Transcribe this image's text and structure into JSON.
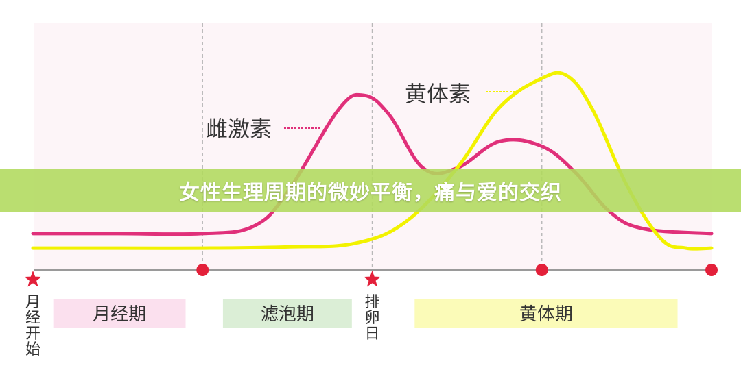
{
  "banner": {
    "title": "女性生理周期的微妙平衡，痛与爱的交织"
  },
  "colors": {
    "estrogen": "#e0307a",
    "progesterone": "#f2f200",
    "baseline_dot": "#e3203a",
    "phase_menstrual": "#fbe0ee",
    "phase_follicular": "#dbeed6",
    "phase_luteal": "#fbfbb8",
    "plot_bg": "#fdf5f8",
    "banner": "#b0da5c"
  },
  "chart_data": {
    "type": "line",
    "title": "",
    "xlabel": "",
    "ylabel": "",
    "xlim": [
      0,
      4
    ],
    "ylim": [
      0,
      1
    ],
    "series": [
      {
        "name": "雌激素",
        "x": [
          0,
          0.5,
          1.0,
          1.3,
          1.5,
          1.8,
          1.95,
          2.1,
          2.3,
          2.5,
          2.75,
          3.0,
          3.2,
          3.4,
          3.6,
          4.0
        ],
        "y": [
          0.15,
          0.15,
          0.15,
          0.18,
          0.32,
          0.66,
          0.72,
          0.64,
          0.42,
          0.42,
          0.53,
          0.51,
          0.4,
          0.24,
          0.17,
          0.15
        ]
      },
      {
        "name": "黄体素",
        "x": [
          0,
          0.5,
          1.0,
          1.5,
          1.9,
          2.2,
          2.5,
          2.75,
          3.0,
          3.15,
          3.3,
          3.5,
          3.7,
          3.85,
          4.0
        ],
        "y": [
          0.09,
          0.09,
          0.09,
          0.095,
          0.11,
          0.2,
          0.42,
          0.67,
          0.79,
          0.8,
          0.66,
          0.35,
          0.13,
          0.09,
          0.09
        ]
      }
    ],
    "series_labels": {
      "estrogen": "雌激素",
      "progesterone": "黄体素"
    },
    "markers": [
      {
        "x": 0,
        "shape": "star",
        "label": "月经开始"
      },
      {
        "x": 1,
        "shape": "circle",
        "label": ""
      },
      {
        "x": 2,
        "shape": "star",
        "label": "排卵日"
      },
      {
        "x": 3,
        "shape": "circle",
        "label": ""
      },
      {
        "x": 4,
        "shape": "circle",
        "label": ""
      }
    ],
    "phases": [
      {
        "label": "月经期",
        "start": 0.12,
        "end": 0.9
      },
      {
        "label": "滤泡期",
        "start": 1.12,
        "end": 1.88
      },
      {
        "label": "黄体期",
        "start": 2.25,
        "end": 3.8
      }
    ],
    "grid": {
      "vertical_dashed_at": [
        1,
        2,
        3
      ]
    },
    "legend": "inline"
  }
}
